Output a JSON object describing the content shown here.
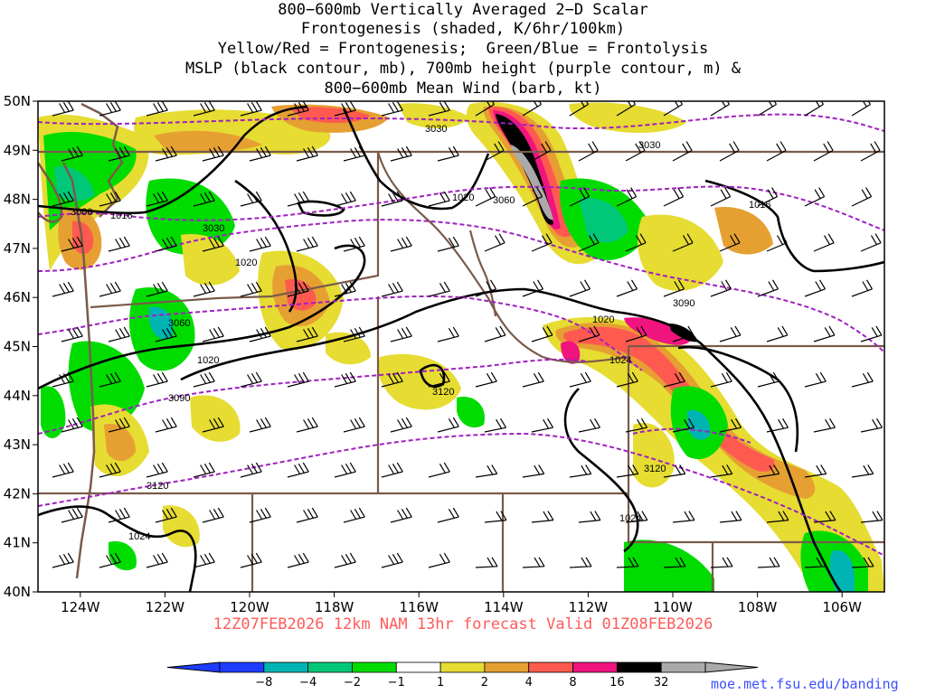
{
  "title_lines": [
    "800−600mb Vertically Averaged 2−D Scalar",
    "Frontogenesis (shaded, K/6hr/100km)",
    "Yellow/Red = Frontogenesis;  Green/Blue = Frontolysis",
    "MSLP (black contour, mb), 700mb height (purple contour, m) &",
    "800−600mb Mean Wind (barb, kt)"
  ],
  "forecast_label": "12Z07FEB2026 12km NAM 13hr forecast Valid 01Z08FEB2026",
  "credit": "moe.met.fsu.edu/banding",
  "map": {
    "lon_range": [
      -125,
      -105
    ],
    "lat_range": [
      40,
      50
    ],
    "lon_ticks": [
      "124W",
      "122W",
      "120W",
      "118W",
      "116W",
      "114W",
      "112W",
      "110W",
      "108W",
      "106W"
    ],
    "lat_ticks": [
      "50N",
      "49N",
      "48N",
      "47N",
      "46N",
      "45N",
      "44N",
      "43N",
      "42N",
      "41N",
      "40N"
    ],
    "mslp_labels": [
      "1016",
      "1020",
      "1020",
      "1020",
      "1020",
      "1016",
      "1020",
      "1024",
      "1024",
      "1024"
    ],
    "height_labels": [
      "3030",
      "3000",
      "3030",
      "3060",
      "3090",
      "3120",
      "3030",
      "3090",
      "3060",
      "3120",
      "3120"
    ]
  },
  "colorbar": {
    "ticks": [
      "−8",
      "−4",
      "−2",
      "−1",
      "1",
      "2",
      "4",
      "8",
      "16",
      "32"
    ],
    "colors": [
      "#1e3cff",
      "#00b4b4",
      "#00c878",
      "#00dc00",
      "#ffffff",
      "#e6dc32",
      "#e6a032",
      "#ff5a50",
      "#f0147f",
      "#000000",
      "#aaaaaa"
    ]
  }
}
